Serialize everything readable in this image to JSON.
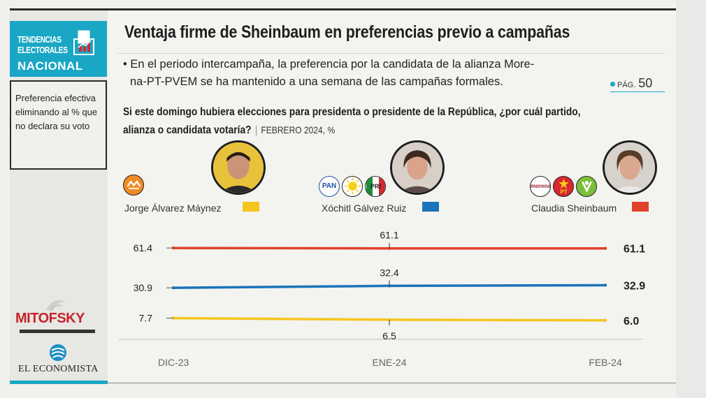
{
  "sidebar": {
    "tag_line1": "TENDENCIAS",
    "tag_line2": "ELECTORALES",
    "tag_line3": "NACIONAL",
    "note": "Preferencia efectiva eliminando al % que no declara su voto",
    "brand1": "MITOFSKY",
    "brand2": "EL ECONOMISTA"
  },
  "header": {
    "title": "Ventaja firme de Sheinbaum en preferencias previo a campañas",
    "bullet_line1": "• En el periodo intercampaña, la preferencia por la candidata de la alianza More-",
    "bullet_line2": "na-PT-PVEM se ha mantenido a una semana de las campañas formales.",
    "page_ref_prefix": "PÁG.",
    "page_ref_number": "50",
    "question_line1": "Si este domingo hubiera elecciones para presidenta o presidente de la República, ¿por cuál partido,",
    "question_line2": "alianza o candidata votaría?",
    "question_meta": "FEBRERO 2024, %"
  },
  "candidates": [
    {
      "name": "Jorge Álvarez Máynez",
      "color": "#f5c51f",
      "parties": [
        "MC"
      ]
    },
    {
      "name": "Xóchitl Gálvez Ruiz",
      "color": "#1a73b8",
      "parties": [
        "PAN",
        "PRD",
        "PRI"
      ]
    },
    {
      "name": "Claudia Sheinbaum",
      "color": "#e0432b",
      "parties": [
        "morena",
        "PT",
        "PVEM"
      ]
    }
  ],
  "chart_data": {
    "type": "line",
    "x": [
      "DIC-23",
      "ENE-24",
      "FEB-24"
    ],
    "series": [
      {
        "name": "Claudia Sheinbaum",
        "values": [
          61.4,
          61.1,
          61.1
        ],
        "color": "#e0432b"
      },
      {
        "name": "Xóchitl Gálvez Ruiz",
        "values": [
          30.9,
          32.4,
          32.9
        ],
        "color": "#1a73b8"
      },
      {
        "name": "Jorge Álvarez Máynez",
        "values": [
          7.7,
          6.5,
          6.0
        ],
        "color": "#f5c51f"
      }
    ],
    "data_labels": [
      [
        "61.4",
        "61.1",
        "61.1"
      ],
      [
        "30.9",
        "32.4",
        "32.9"
      ],
      [
        "7.7",
        "6.5",
        "6.0"
      ]
    ],
    "ylim": [
      0,
      70
    ],
    "grid": false,
    "legend": "top"
  }
}
